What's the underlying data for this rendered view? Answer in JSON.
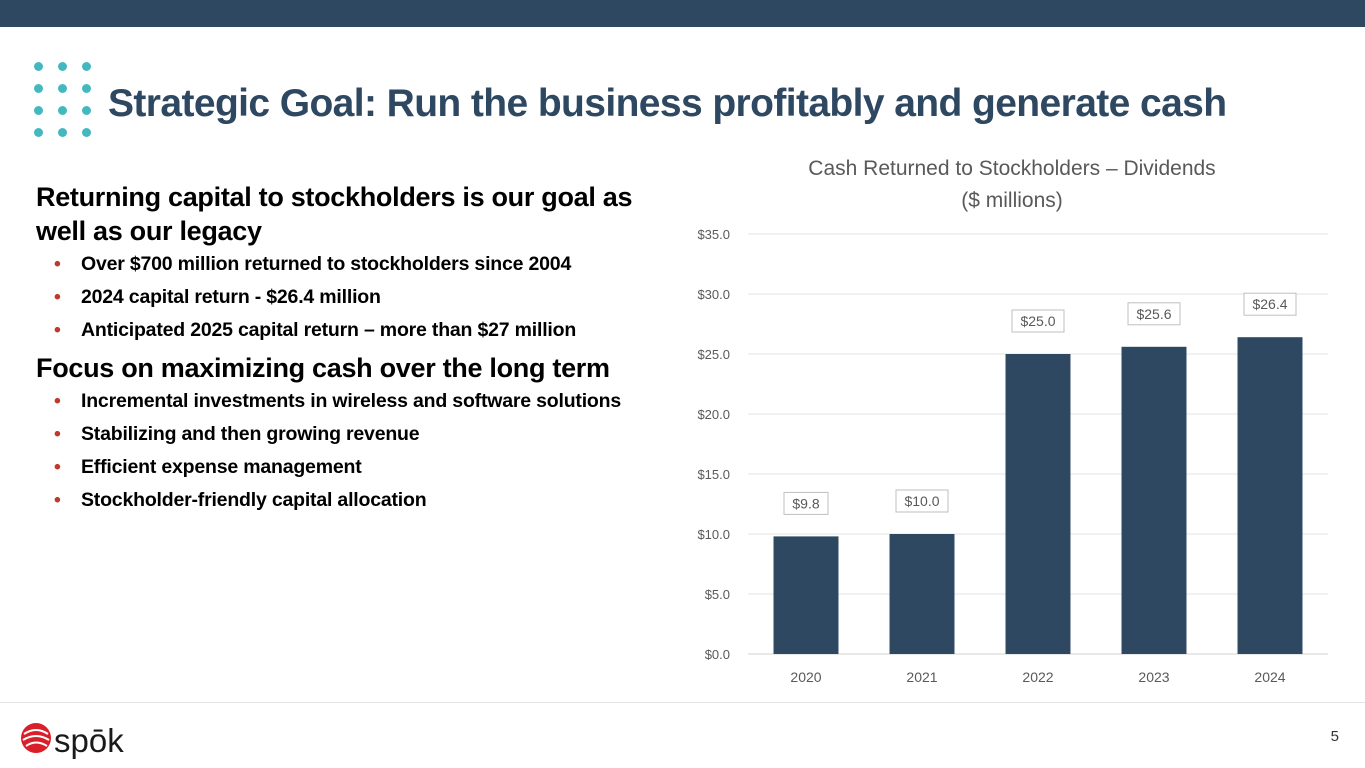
{
  "slide": {
    "title": "Strategic Goal: Run the business profitably and generate cash",
    "page_number": "5",
    "brand": "spōk"
  },
  "content": {
    "sections": [
      {
        "heading": "Returning capital to stockholders is our goal as well as our legacy",
        "bullets": [
          "Over $700 million returned to stockholders since 2004",
          "2024 capital return - $26.4 million",
          "Anticipated 2025 capital return – more than $27 million"
        ]
      },
      {
        "heading": "Focus on maximizing cash over the long term",
        "bullets": [
          "Incremental investments in wireless and software solutions",
          "Stabilizing and then growing revenue",
          "Efficient expense management",
          "Stockholder-friendly capital allocation"
        ]
      }
    ]
  },
  "colors": {
    "bar": "#2f4862",
    "accent_dots": "#45b8bf",
    "bullet": "#c0392b",
    "logo_red": "#d9202a"
  },
  "chart_data": {
    "type": "bar",
    "title_lines": [
      "Cash Returned to Stockholders – Dividends",
      "($ millions)"
    ],
    "categories": [
      "2020",
      "2021",
      "2022",
      "2023",
      "2024"
    ],
    "values": [
      9.8,
      10.0,
      25.0,
      25.6,
      26.4
    ],
    "data_labels": [
      "$9.8",
      "$10.0",
      "$25.0",
      "$25.6",
      "$26.4"
    ],
    "ylim": [
      0,
      35
    ],
    "yticks": [
      0,
      5,
      10,
      15,
      20,
      25,
      30,
      35
    ],
    "ytick_labels": [
      "$0.0",
      "$5.0",
      "$10.0",
      "$15.0",
      "$20.0",
      "$25.0",
      "$30.0",
      "$35.0"
    ],
    "grid": true,
    "legend": "none"
  }
}
